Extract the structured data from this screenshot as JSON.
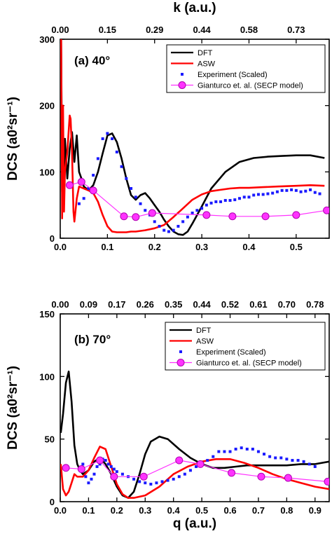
{
  "top_axis_title": "k (a.u.)",
  "bottom_axis_title": "q (a.u.)",
  "legend_labels": [
    "DFT",
    "ASW",
    "Experiment (Scaled)",
    "Gianturco et. al. (SECP model)"
  ],
  "colors": {
    "dft": "#000000",
    "asw": "#ff0000",
    "exp": "#1a1aff",
    "gianturco": "#ff33ff"
  },
  "chart_data": [
    {
      "type": "line",
      "panel_label": "(a) 40°",
      "xlabel": "",
      "ylabel": "DCS (a0²sr⁻¹)",
      "xlim": [
        0,
        0.57
      ],
      "ylim": [
        0,
        300
      ],
      "x_ticks": [
        "0.0",
        "0.1",
        "0.2",
        "0.3",
        "0.4",
        "0.5"
      ],
      "y_ticks": [
        "0",
        "100",
        "200",
        "300"
      ],
      "top_ticks": [
        "0.00",
        "0.15",
        "0.29",
        "0.44",
        "0.58",
        "0.73"
      ],
      "legend_position": "top-right",
      "series": [
        {
          "name": "DFT",
          "x": [
            0.002,
            0.004,
            0.006,
            0.008,
            0.01,
            0.015,
            0.02,
            0.025,
            0.03,
            0.035,
            0.04,
            0.045,
            0.05,
            0.06,
            0.07,
            0.08,
            0.09,
            0.1,
            0.11,
            0.12,
            0.13,
            0.14,
            0.15,
            0.16,
            0.17,
            0.18,
            0.19,
            0.2,
            0.21,
            0.22,
            0.23,
            0.24,
            0.25,
            0.26,
            0.27,
            0.28,
            0.3,
            0.32,
            0.35,
            0.38,
            0.41,
            0.44,
            0.47,
            0.5,
            0.53,
            0.56
          ],
          "values": [
            300,
            70,
            150,
            75,
            150,
            90,
            135,
            160,
            115,
            155,
            100,
            90,
            78,
            72,
            80,
            100,
            128,
            155,
            158,
            145,
            120,
            90,
            65,
            58,
            65,
            68,
            60,
            50,
            40,
            28,
            18,
            10,
            6,
            5,
            10,
            22,
            48,
            75,
            100,
            115,
            121,
            123,
            124,
            125,
            125,
            121
          ]
        },
        {
          "name": "ASW",
          "x": [
            0.002,
            0.004,
            0.006,
            0.008,
            0.01,
            0.015,
            0.02,
            0.022,
            0.025,
            0.028,
            0.03,
            0.035,
            0.04,
            0.05,
            0.06,
            0.07,
            0.08,
            0.09,
            0.1,
            0.11,
            0.12,
            0.13,
            0.14,
            0.15,
            0.16,
            0.18,
            0.2,
            0.22,
            0.24,
            0.26,
            0.28,
            0.3,
            0.32,
            0.34,
            0.36,
            0.38,
            0.4,
            0.43,
            0.46,
            0.5,
            0.53,
            0.56
          ],
          "values": [
            300,
            30,
            200,
            40,
            100,
            130,
            185,
            180,
            130,
            40,
            25,
            60,
            78,
            75,
            72,
            68,
            55,
            35,
            18,
            10,
            9,
            9,
            9,
            10,
            10,
            12,
            15,
            20,
            32,
            45,
            58,
            66,
            71,
            73,
            75,
            76,
            76,
            77,
            78,
            79,
            80,
            79
          ]
        },
        {
          "name": "Experiment (Scaled)",
          "x": [
            0.04,
            0.05,
            0.06,
            0.07,
            0.08,
            0.09,
            0.1,
            0.11,
            0.12,
            0.13,
            0.14,
            0.15,
            0.16,
            0.17,
            0.18,
            0.19,
            0.2,
            0.21,
            0.22,
            0.23,
            0.24,
            0.25,
            0.26,
            0.27,
            0.28,
            0.29,
            0.3,
            0.31,
            0.32,
            0.33,
            0.34,
            0.35,
            0.36,
            0.37,
            0.38,
            0.39,
            0.4,
            0.41,
            0.42,
            0.43,
            0.44,
            0.45,
            0.46,
            0.47,
            0.48,
            0.49,
            0.5,
            0.51,
            0.52,
            0.53,
            0.54,
            0.55
          ],
          "values": [
            52,
            60,
            75,
            95,
            120,
            150,
            158,
            150,
            130,
            108,
            90,
            75,
            62,
            52,
            42,
            35,
            25,
            18,
            12,
            10,
            12,
            18,
            25,
            32,
            38,
            42,
            45,
            50,
            53,
            55,
            55,
            57,
            57,
            58,
            60,
            62,
            62,
            65,
            66,
            66,
            67,
            68,
            70,
            72,
            72,
            73,
            72,
            70,
            71,
            73,
            69,
            67
          ]
        },
        {
          "name": "Gianturco et. al. (SECP model)",
          "x": [
            0.02,
            0.045,
            0.07,
            0.135,
            0.16,
            0.195,
            0.31,
            0.365,
            0.435,
            0.5,
            0.565
          ],
          "values": [
            80,
            85,
            72,
            33,
            32,
            38,
            35,
            33,
            33,
            35,
            42
          ]
        }
      ]
    },
    {
      "type": "line",
      "panel_label": "(b) 70°",
      "xlabel": "q (a.u.)",
      "ylabel": "DCS (a0²sr⁻¹)",
      "xlim": [
        0,
        0.95
      ],
      "ylim": [
        0,
        150
      ],
      "x_ticks": [
        "0.0",
        "0.1",
        "0.2",
        "0.3",
        "0.4",
        "0.5",
        "0.6",
        "0.7",
        "0.8",
        "0.9"
      ],
      "y_ticks": [
        "0",
        "50",
        "100",
        "150"
      ],
      "top_ticks": [
        "0.00",
        "0.09",
        "0.17",
        "0.26",
        "0.35",
        "0.44",
        "0.52",
        "0.61",
        "0.70",
        "0.78"
      ],
      "legend_position": "top-right",
      "series": [
        {
          "name": "DFT",
          "x": [
            0.002,
            0.01,
            0.02,
            0.03,
            0.04,
            0.05,
            0.06,
            0.07,
            0.08,
            0.1,
            0.12,
            0.14,
            0.16,
            0.18,
            0.2,
            0.22,
            0.24,
            0.26,
            0.28,
            0.3,
            0.32,
            0.35,
            0.38,
            0.42,
            0.46,
            0.5,
            0.54,
            0.58,
            0.62,
            0.66,
            0.7,
            0.75,
            0.8,
            0.85,
            0.9,
            0.95
          ],
          "values": [
            55,
            70,
            95,
            104,
            80,
            45,
            30,
            25,
            22,
            25,
            32,
            35,
            30,
            22,
            12,
            5,
            3,
            8,
            22,
            38,
            48,
            52,
            50,
            42,
            35,
            30,
            27,
            27,
            28,
            29,
            29,
            29,
            29,
            30,
            30,
            32
          ]
        },
        {
          "name": "ASW",
          "x": [
            0.002,
            0.01,
            0.02,
            0.03,
            0.04,
            0.05,
            0.06,
            0.08,
            0.1,
            0.12,
            0.14,
            0.16,
            0.18,
            0.2,
            0.22,
            0.24,
            0.26,
            0.3,
            0.35,
            0.4,
            0.45,
            0.5,
            0.55,
            0.6,
            0.65,
            0.7,
            0.75,
            0.8,
            0.85,
            0.9,
            0.95
          ],
          "values": [
            30,
            10,
            5,
            8,
            15,
            22,
            20,
            20,
            25,
            35,
            44,
            42,
            28,
            14,
            6,
            3,
            3,
            5,
            12,
            22,
            28,
            32,
            34,
            34,
            31,
            27,
            22,
            18,
            15,
            12,
            10
          ]
        },
        {
          "name": "Experiment (Scaled)",
          "x": [
            0.08,
            0.09,
            0.1,
            0.11,
            0.12,
            0.13,
            0.14,
            0.15,
            0.16,
            0.17,
            0.18,
            0.19,
            0.2,
            0.22,
            0.24,
            0.26,
            0.28,
            0.3,
            0.32,
            0.34,
            0.36,
            0.38,
            0.4,
            0.42,
            0.44,
            0.46,
            0.48,
            0.5,
            0.52,
            0.54,
            0.56,
            0.58,
            0.6,
            0.62,
            0.64,
            0.66,
            0.68,
            0.7,
            0.72,
            0.74,
            0.76,
            0.78,
            0.8,
            0.82,
            0.84,
            0.86,
            0.88,
            0.9
          ],
          "values": [
            30,
            20,
            15,
            18,
            22,
            28,
            30,
            34,
            33,
            30,
            28,
            26,
            24,
            22,
            20,
            18,
            16,
            15,
            14,
            15,
            16,
            17,
            18,
            20,
            22,
            25,
            28,
            30,
            33,
            36,
            40,
            40,
            40,
            42,
            43,
            42,
            42,
            40,
            38,
            36,
            35,
            35,
            34,
            33,
            33,
            32,
            30,
            28
          ]
        },
        {
          "name": "Gianturco et. al. (SECP model)",
          "x": [
            0.02,
            0.075,
            0.14,
            0.19,
            0.295,
            0.42,
            0.495,
            0.605,
            0.71,
            0.805,
            0.945
          ],
          "values": [
            27,
            26,
            33,
            20,
            20,
            33,
            30,
            23,
            20,
            19,
            16
          ]
        }
      ]
    }
  ]
}
